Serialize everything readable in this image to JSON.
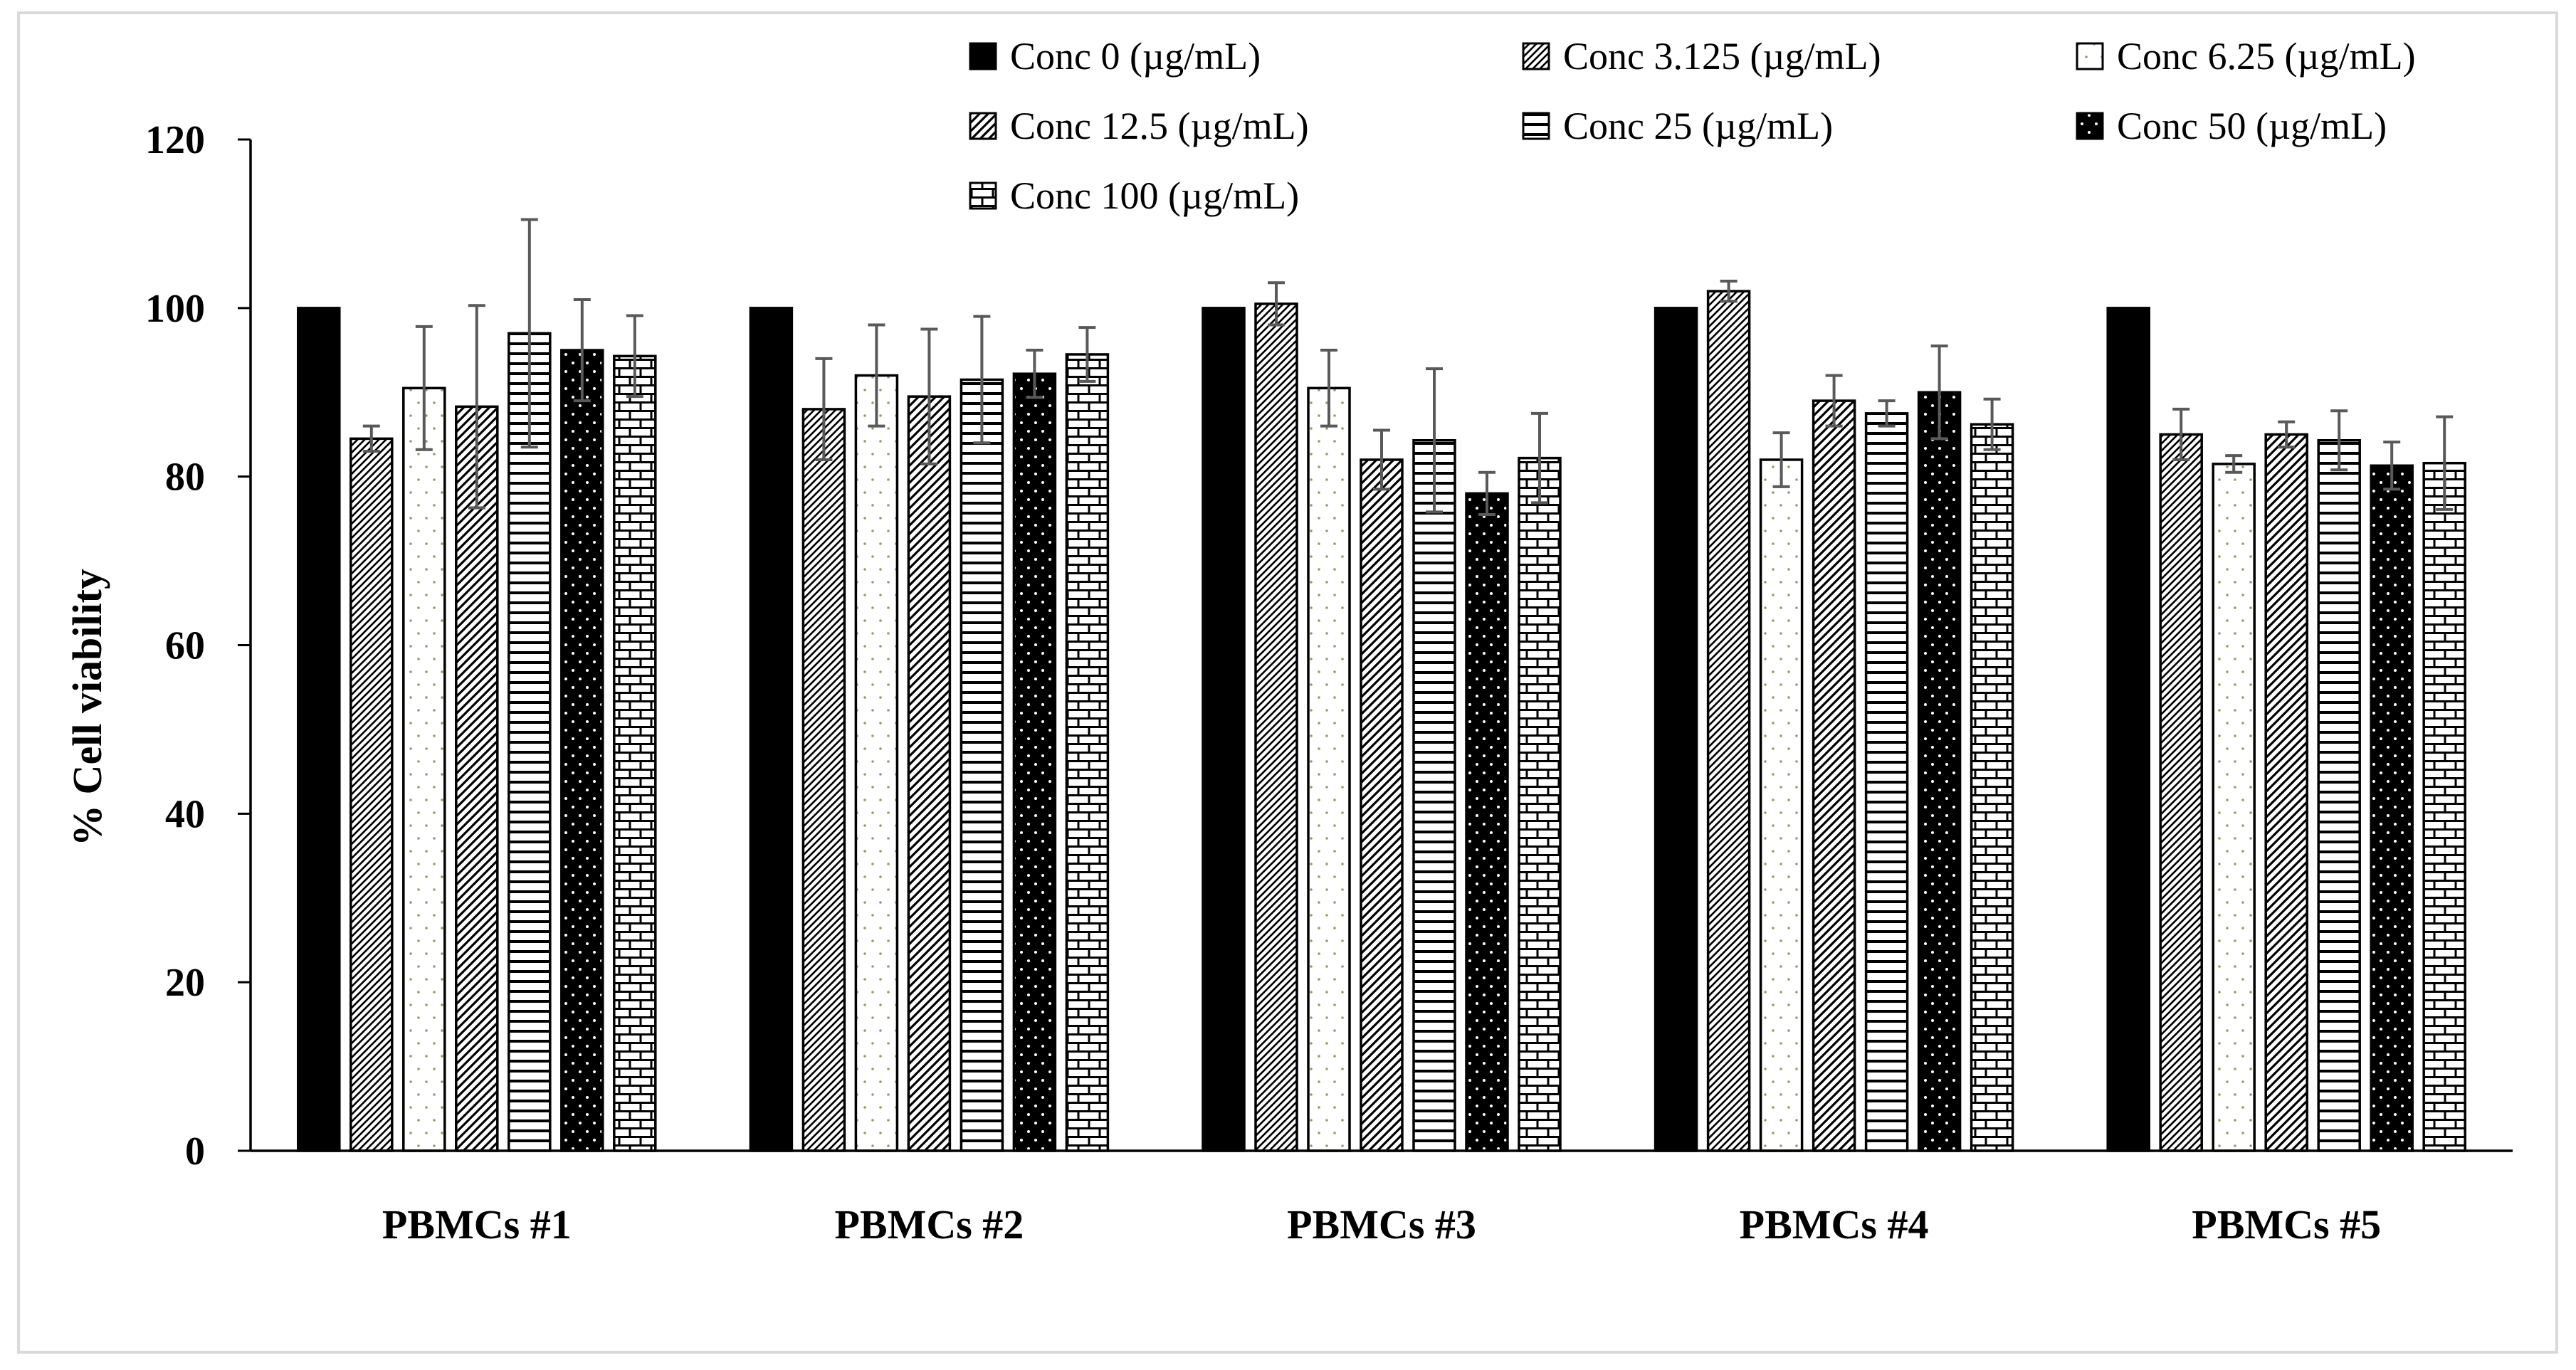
{
  "chart_data": {
    "type": "bar",
    "title": "",
    "xlabel": "",
    "ylabel": "% Cell viability",
    "ylim": [
      0,
      120
    ],
    "yticks": [
      0,
      20,
      40,
      60,
      80,
      100,
      120
    ],
    "grid": false,
    "legend_position": "top-right",
    "categories": [
      "PBMCs #1",
      "PBMCs #2",
      "PBMCs #3",
      "PBMCs #4",
      "PBMCs #5"
    ],
    "series": [
      {
        "name": "Conc 0 (µg/mL)",
        "pattern": "solid",
        "values": [
          100,
          100,
          100,
          100,
          100
        ],
        "errors": [
          0,
          0,
          0,
          0,
          0
        ]
      },
      {
        "name": "Conc 3.125 (µg/mL)",
        "pattern": "diag-dense-left",
        "values": [
          84.5,
          88,
          100.5,
          102,
          85
        ],
        "errors": [
          1.5,
          6,
          2.5,
          1.2,
          3
        ]
      },
      {
        "name": "Conc 6.25 (µg/mL)",
        "pattern": "dotted-light",
        "values": [
          90.5,
          92,
          90.5,
          82,
          81.5
        ],
        "errors": [
          7.3,
          6,
          4.5,
          3.2,
          1
        ]
      },
      {
        "name": "Conc 12.5 (µg/mL)",
        "pattern": "diag-right",
        "values": [
          88.3,
          89.5,
          82,
          89,
          85
        ],
        "errors": [
          12,
          8,
          3.5,
          3,
          1.5
        ]
      },
      {
        "name": "Conc 25 (µg/mL)",
        "pattern": "horizontal",
        "values": [
          97,
          91.5,
          84.3,
          87.5,
          84.3
        ],
        "errors": [
          13.5,
          7.5,
          8.5,
          1.5,
          3.5
        ]
      },
      {
        "name": "Conc 50 (µg/mL)",
        "pattern": "dots-on-black",
        "values": [
          95,
          92.2,
          78,
          90,
          81.3
        ],
        "errors": [
          6,
          2.8,
          2.5,
          5.5,
          2.8
        ]
      },
      {
        "name": "Conc 100 (µg/mL)",
        "pattern": "brick",
        "values": [
          94.3,
          94.5,
          82.2,
          86.2,
          81.6
        ],
        "errors": [
          4.8,
          3.2,
          5.3,
          3,
          5.5
        ]
      }
    ]
  }
}
